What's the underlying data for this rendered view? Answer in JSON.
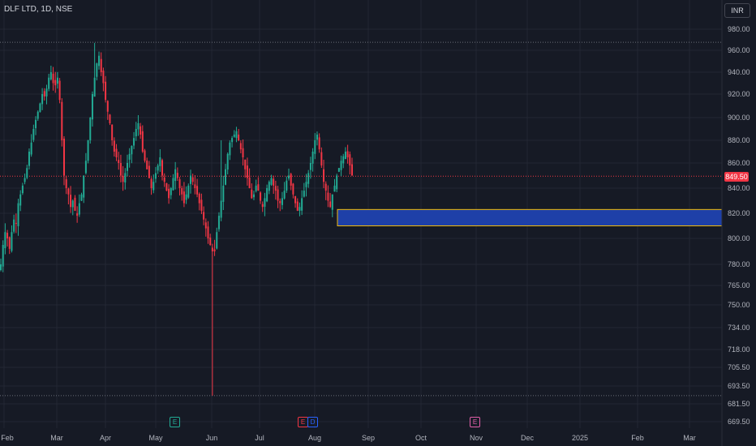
{
  "header": {
    "symbol_title": "DLF LTD, 1D, NSE",
    "currency_button": "INR"
  },
  "current_price": {
    "label": "849.50",
    "value": 849.5,
    "color": "#f23645"
  },
  "colors": {
    "up": "#22ab94",
    "down": "#f23645",
    "zone_fill": "#1e40a8",
    "zone_border": "#f0b90b",
    "background": "#161a25",
    "grid": "#232733"
  },
  "event_markers": [
    {
      "label": "E",
      "date_index": 135,
      "color": "#22ab94"
    },
    {
      "label": "E",
      "date_index": 248,
      "color": "#f23645"
    },
    {
      "label": "D",
      "date_index": 253,
      "color": "#2962ff"
    },
    {
      "label": "E",
      "date_index": 381,
      "color": "#e05ea8"
    }
  ],
  "chart_data": {
    "type": "candlestick",
    "title": "DLF LTD, 1D, NSE",
    "y_ticks": [
      980.0,
      960.0,
      940.0,
      920.0,
      900.0,
      880.0,
      860.0,
      840.0,
      820.0,
      800.0,
      780.0,
      765.0,
      750.0,
      734.0,
      718.0,
      705.5,
      693.5,
      681.5,
      669.5
    ],
    "y_tick_labels": [
      "980.00",
      "960.00",
      "940.00",
      "920.00",
      "900.00",
      "880.00",
      "860.00",
      "840.00",
      "820.00",
      "800.00",
      "780.00",
      "765.00",
      "750.00",
      "734.00",
      "718.00",
      "705.50",
      "693.50",
      "681.50",
      "669.50"
    ],
    "x_tick_labels": [
      "Feb",
      "Mar",
      "Apr",
      "May",
      "Jun",
      "Jul",
      "Aug",
      "Sep",
      "Oct",
      "Nov",
      "Dec",
      "2025",
      "Feb",
      "Mar"
    ],
    "high_line": 967.6,
    "low_line": 687.0,
    "demand_zone": {
      "top": 823.0,
      "bottom": 810.0
    },
    "closes": [
      780,
      795,
      805,
      800,
      792,
      805,
      815,
      812,
      828,
      835,
      842,
      848,
      856,
      870,
      878,
      890,
      898,
      905,
      912,
      920,
      918,
      925,
      935,
      940,
      930,
      928,
      935,
      915,
      880,
      850,
      840,
      835,
      825,
      830,
      822,
      818,
      828,
      835,
      850,
      862,
      880,
      900,
      920,
      935,
      948,
      955,
      940,
      930,
      915,
      905,
      895,
      880,
      870,
      865,
      860,
      850,
      845,
      852,
      860,
      868,
      875,
      882,
      890,
      895,
      885,
      870,
      862,
      855,
      848,
      840,
      845,
      852,
      858,
      865,
      850,
      845,
      838,
      832,
      840,
      848,
      855,
      848,
      840,
      835,
      828,
      835,
      842,
      850,
      845,
      840,
      835,
      828,
      822,
      815,
      808,
      800,
      795,
      790,
      790,
      805,
      818,
      830,
      842,
      855,
      868,
      878,
      882,
      885,
      888,
      880,
      872,
      865,
      855,
      848,
      840,
      832,
      835,
      842,
      838,
      830,
      825,
      832,
      840,
      845,
      848,
      842,
      838,
      830,
      828,
      832,
      838,
      846,
      850,
      842,
      835,
      828,
      822,
      825,
      832,
      838,
      845,
      852,
      860,
      870,
      880,
      885,
      872,
      858,
      845,
      838,
      830,
      825,
      835,
      842,
      850,
      856,
      862,
      866,
      870,
      865,
      858,
      850
    ],
    "note": "closes are approximate daily closing prices (INR) read from the chart"
  }
}
